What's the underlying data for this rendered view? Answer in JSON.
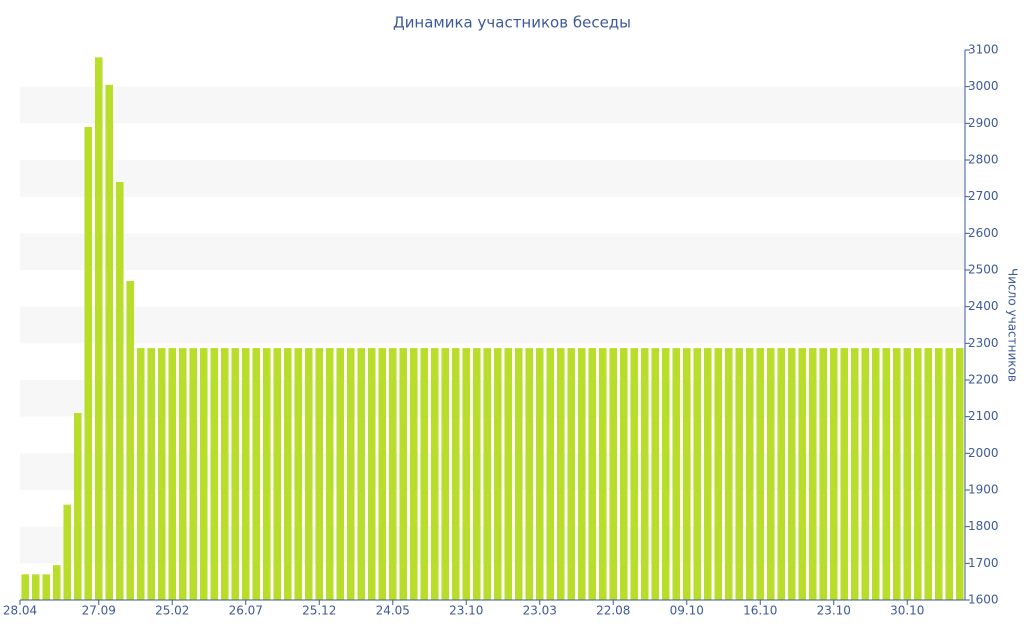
{
  "chart_data": {
    "type": "bar",
    "title": "Динамика участников беседы",
    "y_axis_label": "Число участников",
    "categories": [
      "28.04",
      null,
      null,
      null,
      null,
      null,
      null,
      "27.09",
      null,
      null,
      null,
      null,
      null,
      null,
      "25.02",
      null,
      null,
      null,
      null,
      null,
      null,
      "26.07",
      null,
      null,
      null,
      null,
      null,
      null,
      "25.12",
      null,
      null,
      null,
      null,
      null,
      null,
      "24.05",
      null,
      null,
      null,
      null,
      null,
      null,
      "23.10",
      null,
      null,
      null,
      null,
      null,
      null,
      "23.03",
      null,
      null,
      null,
      null,
      null,
      null,
      "22.08",
      null,
      null,
      null,
      null,
      null,
      null,
      "09.10",
      null,
      null,
      null,
      null,
      null,
      null,
      "16.10",
      null,
      null,
      null,
      null,
      null,
      null,
      "23.10",
      null,
      null,
      null,
      null,
      null,
      null,
      "30.10",
      null,
      null,
      null,
      null,
      null
    ],
    "values": [
      1670,
      1670,
      1670,
      1695,
      1860,
      2110,
      2890,
      3080,
      3005,
      2740,
      2470,
      2287,
      2287,
      2287,
      2287,
      2287,
      2287,
      2287,
      2287,
      2287,
      2287,
      2287,
      2287,
      2287,
      2287,
      2287,
      2287,
      2287,
      2287,
      2287,
      2287,
      2287,
      2287,
      2287,
      2287,
      2287,
      2287,
      2287,
      2287,
      2287,
      2287,
      2287,
      2287,
      2287,
      2287,
      2287,
      2287,
      2287,
      2287,
      2287,
      2287,
      2287,
      2287,
      2287,
      2287,
      2287,
      2287,
      2287,
      2287,
      2287,
      2287,
      2287,
      2287,
      2287,
      2287,
      2287,
      2287,
      2287,
      2287,
      2287,
      2287,
      2287,
      2287,
      2287,
      2287,
      2287,
      2287,
      2287,
      2287,
      2287,
      2287,
      2287,
      2287,
      2287,
      2287,
      2287,
      2287,
      2287,
      2287,
      2287
    ],
    "color": "#b8de2b",
    "ylim": [
      1600,
      3100
    ],
    "yticks": [
      1600,
      1700,
      1800,
      1900,
      2000,
      2100,
      2200,
      2300,
      2400,
      2500,
      2600,
      2700,
      2800,
      2900,
      3000,
      3100
    ],
    "y_axis_side": "right",
    "grid": true
  }
}
